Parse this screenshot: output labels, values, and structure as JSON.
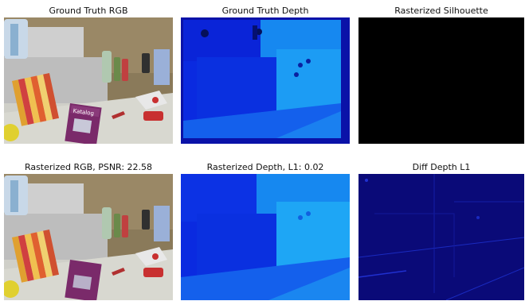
{
  "figure": {
    "panels": [
      {
        "title": "Ground Truth RGB"
      },
      {
        "title": "Ground Truth Depth"
      },
      {
        "title": "Rasterized Silhouette"
      },
      {
        "title": "Rasterized RGB, PSNR: 22.58"
      },
      {
        "title": "Rasterized Depth, L1: 0.02"
      },
      {
        "title": "Diff Depth L1"
      }
    ],
    "scene_text": {
      "magazine": "Katalog"
    }
  },
  "colors": {
    "silhouette": "#000000",
    "depth_near": "#0a1fd0",
    "depth_far": "#1ea6f5",
    "diff_bg": "#0a0a78"
  }
}
